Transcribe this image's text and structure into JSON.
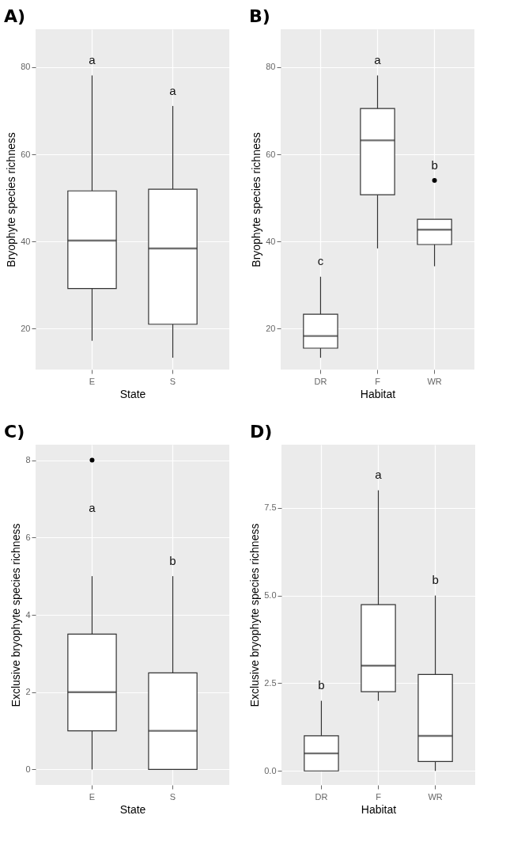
{
  "chart_data": [
    {
      "type": "box",
      "title": "A)",
      "xlabel": "State",
      "ylabel": "Bryophyte species richness",
      "categories": [
        "E",
        "S"
      ],
      "boxes": [
        {
          "low": 17.2,
          "q1": 29.2,
          "median": 40.2,
          "q3": 51.6,
          "high": 78.1
        },
        {
          "low": 13.3,
          "q1": 21.0,
          "median": 38.4,
          "q3": 52.0,
          "high": 71.1
        }
      ],
      "ylim": [
        10.6,
        88.7
      ],
      "yticks": [
        20,
        40,
        60,
        80
      ],
      "grid": true,
      "annotations": [
        "a",
        "a"
      ]
    },
    {
      "type": "box",
      "title": "B)",
      "xlabel": "Habitat",
      "ylabel": "Bryophyte species richness",
      "categories": [
        "DR",
        "F",
        "WR"
      ],
      "boxes": [
        {
          "low": 13.3,
          "q1": 15.5,
          "median": 18.3,
          "q3": 23.3,
          "high": 31.9
        },
        {
          "low": 38.4,
          "q1": 50.7,
          "median": 63.2,
          "q3": 70.5,
          "high": 78.1
        },
        {
          "low": 34.3,
          "q1": 39.3,
          "median": 42.7,
          "q3": 45.1,
          "high": 45.1,
          "outliers": [
            54.0
          ]
        }
      ],
      "ylim": [
        10.6,
        88.7
      ],
      "yticks": [
        20,
        40,
        60,
        80
      ],
      "grid": true,
      "annotations": [
        "c",
        "a",
        "b"
      ]
    },
    {
      "type": "box",
      "title": "C)",
      "xlabel": "State",
      "ylabel": "Exclusive bryophyte species richness",
      "categories": [
        "E",
        "S"
      ],
      "boxes": [
        {
          "low": 0,
          "q1": 1,
          "median": 2,
          "q3": 3.5,
          "high": 5,
          "outliers": [
            8
          ]
        },
        {
          "low": 0,
          "q1": 0,
          "median": 1,
          "q3": 2.5,
          "high": 5
        }
      ],
      "ylim": [
        -0.4,
        8.4
      ],
      "yticks": [
        0,
        2,
        4,
        6,
        8
      ],
      "grid": true,
      "annotations": [
        "a",
        "b"
      ]
    },
    {
      "type": "box",
      "title": "D)",
      "xlabel": "Habitat",
      "ylabel": "Exclusive bryophyte species richness",
      "categories": [
        "DR",
        "F",
        "WR"
      ],
      "boxes": [
        {
          "low": 0,
          "q1": 0,
          "median": 0.5,
          "q3": 1.0,
          "high": 2.0
        },
        {
          "low": 2.0,
          "q1": 2.26,
          "median": 3.0,
          "q3": 4.74,
          "high": 8.0
        },
        {
          "low": 0,
          "q1": 0.27,
          "median": 1.0,
          "q3": 2.75,
          "high": 5.0
        }
      ],
      "ylim": [
        -0.4,
        9.3
      ],
      "yticks": [
        {
          "value": 0,
          "label": "0.0"
        },
        2.5,
        {
          "value": 5,
          "label": "5.0"
        },
        7.5
      ],
      "grid": true,
      "annotations": [
        "b",
        "a",
        "b"
      ]
    }
  ]
}
